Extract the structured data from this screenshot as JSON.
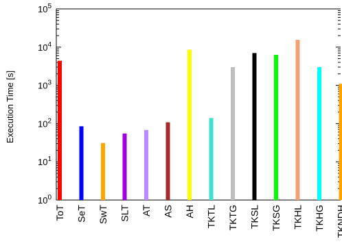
{
  "chart_data": {
    "type": "bar",
    "yscale": "log",
    "ylabel": "Execution Time [s]",
    "ylim": [
      1,
      100000
    ],
    "grid": false,
    "legend": "none",
    "categories": [
      "ToT",
      "SeT",
      "SwT",
      "SLT",
      "AT",
      "AS",
      "AH",
      "TKTL",
      "TKTG",
      "TKSL",
      "TKSG",
      "TKHL",
      "TKHG",
      "TKNDH"
    ],
    "values": [
      4400,
      85,
      31,
      55,
      68,
      108,
      8600,
      140,
      3000,
      7000,
      6300,
      15500,
      3000,
      1100
    ],
    "colors": [
      "#ff0000",
      "#0000ff",
      "#ffa500",
      "#a000e0",
      "#bb88ff",
      "#a52a2a",
      "#ffff00",
      "#40e0d0",
      "#bebebe",
      "#000000",
      "#00ff00",
      "#f4a070",
      "#00ffff",
      "#ffa500"
    ],
    "yticks": [
      {
        "base": "10",
        "exp": "0"
      },
      {
        "base": "10",
        "exp": "1"
      },
      {
        "base": "10",
        "exp": "2"
      },
      {
        "base": "10",
        "exp": "3"
      },
      {
        "base": "10",
        "exp": "4"
      },
      {
        "base": "10",
        "exp": "5"
      }
    ]
  }
}
